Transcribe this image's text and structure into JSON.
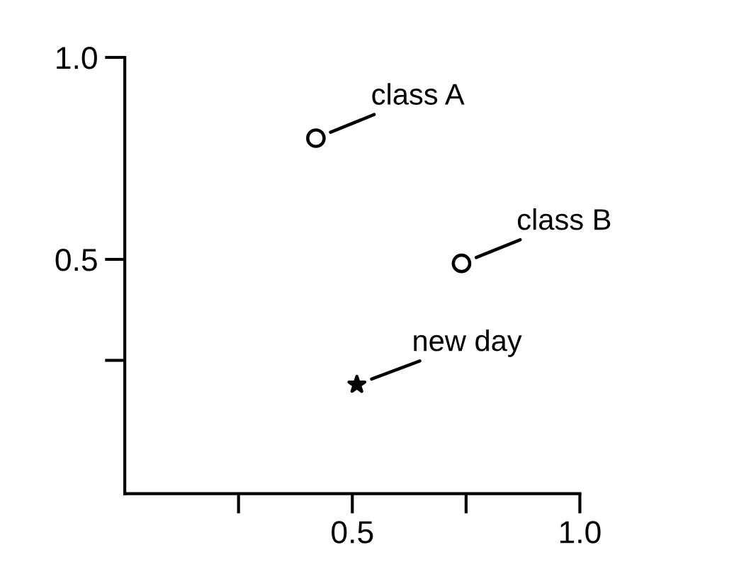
{
  "chart_data": {
    "type": "scatter",
    "xlim": [
      0,
      1.0
    ],
    "ylim": [
      -0.08,
      1.0
    ],
    "xticks": [
      {
        "value": 0.25,
        "label": null
      },
      0.5,
      {
        "value": 0.75,
        "label": null
      },
      {
        "value": 1,
        "label": "1.0"
      }
    ],
    "yticks": [
      {
        "value": 0.25,
        "label": null
      },
      0.5,
      {
        "value": 1,
        "label": "1.0"
      }
    ],
    "grid": false,
    "legend": false,
    "series": [
      {
        "name": "class A",
        "color": "#000000",
        "marker": "circle",
        "x": [
          0.42
        ],
        "values": [
          0.8
        ]
      },
      {
        "name": "class B",
        "color": "#000000",
        "marker": "circle",
        "x": [
          0.74
        ],
        "values": [
          0.49
        ]
      },
      {
        "name": "new day",
        "color": "#000000",
        "marker": "star",
        "x": [
          0.51
        ],
        "values": [
          0.19
        ]
      }
    ]
  }
}
